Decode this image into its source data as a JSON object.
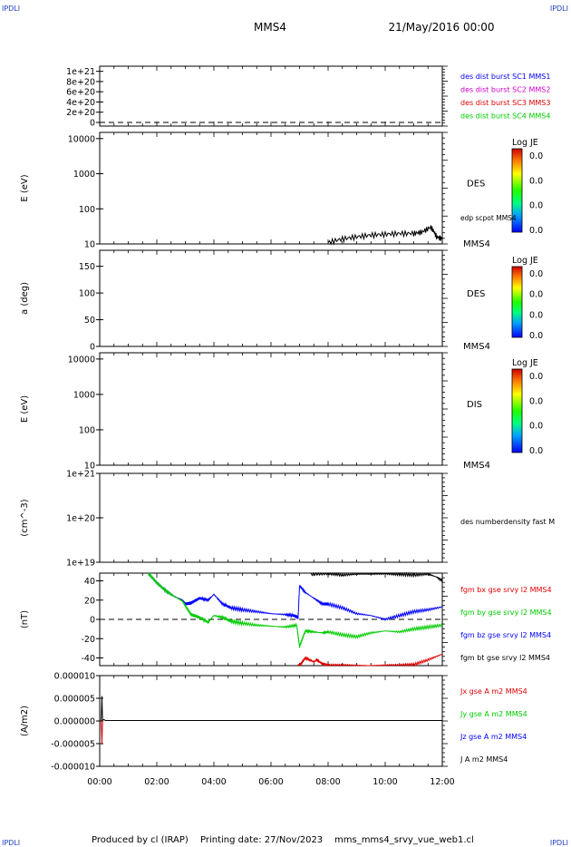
{
  "header": {
    "corner_left_top": "IPDLI",
    "corner_right_top": "IPDLI",
    "corner_left_bottom": "IPDLI",
    "corner_right_bottom": "IPDLI",
    "spacecraft": "MMS4",
    "date": "21/May/2016 00:00"
  },
  "footer": {
    "produced_by": "Produced by cl (IRAP)",
    "printing_date": "Printing date: 27/Nov/2023",
    "filename": "mms_mms4_srvy_vue_web1.cl"
  },
  "time_axis": {
    "ticks": [
      "00:00",
      "02:00",
      "04:00",
      "06:00",
      "08:00",
      "10:00",
      "12:00"
    ],
    "range_hours": [
      0,
      12
    ]
  },
  "chart_data": [
    {
      "type": "line",
      "panel": "burst",
      "ylabel": "",
      "yticks": [
        "1e+21",
        "8e+20",
        "6e+20",
        "4e+20",
        "2e+20",
        "0"
      ],
      "legend": [
        {
          "text": "des dist burst SC1 MMS1",
          "color": "#0000ff"
        },
        {
          "text": "des dist burst SC2 MMS2",
          "color": "#d000d0"
        },
        {
          "text": "des dist burst SC3 MMS3",
          "color": "#e00000"
        },
        {
          "text": "des dist burst SC4 MMS4",
          "color": "#00cc00"
        }
      ],
      "series": [
        {
          "values_description": "dashed zero line",
          "y": 0
        }
      ]
    },
    {
      "type": "heatmap",
      "panel": "des-energy",
      "ylabel": "E (eV)",
      "scale": "log",
      "ylim": [
        10,
        15000
      ],
      "yticks": [
        "10000",
        "1000",
        "100",
        "10"
      ],
      "label": "DES",
      "sublabel": "MMS4",
      "colorbar": {
        "title": "Log JE",
        "ticks": [
          "0.0",
          "0.0",
          "0.0",
          "0.0"
        ]
      },
      "overlay": {
        "name": "edp scpot MMS4",
        "color": "#000000",
        "x": [
          8.0,
          8.5,
          9.0,
          9.5,
          10.0,
          10.5,
          11.0,
          11.3,
          11.6,
          11.8,
          12.0
        ],
        "y": [
          11,
          14,
          16,
          18,
          19,
          20,
          20,
          22,
          30,
          16,
          14
        ]
      }
    },
    {
      "type": "heatmap",
      "panel": "des-pitch",
      "ylabel": "a (deg)",
      "ylim": [
        0,
        180
      ],
      "yticks": [
        "150",
        "100",
        "50",
        "0"
      ],
      "label": "DES",
      "sublabel": "MMS4",
      "colorbar": {
        "title": "Log JE",
        "ticks": [
          "0.0",
          "0.0",
          "0.0",
          "0.0"
        ]
      }
    },
    {
      "type": "heatmap",
      "panel": "dis-energy",
      "ylabel": "E (eV)",
      "scale": "log",
      "ylim": [
        10,
        15000
      ],
      "yticks": [
        "10000",
        "1000",
        "100",
        "10"
      ],
      "label": "DIS",
      "sublabel": "MMS4",
      "colorbar": {
        "title": "Log JE",
        "ticks": [
          "0.0",
          "0.0",
          "0.0",
          "0.0"
        ]
      }
    },
    {
      "type": "line",
      "panel": "density",
      "ylabel": "(cm^-3)",
      "scale": "log",
      "yticks": [
        "1e+21",
        "1e+20",
        "1e+19"
      ],
      "legend": [
        {
          "text": "des numberdensity fast M",
          "color": "#000000"
        }
      ]
    },
    {
      "type": "line",
      "panel": "fgm",
      "ylabel": "(nT)",
      "ylim": [
        -48,
        48
      ],
      "yticks": [
        "40",
        "20",
        "0",
        "-20",
        "-40"
      ],
      "legend": [
        {
          "text": "fgm bx gse srvy l2 MMS4",
          "color": "#e00000"
        },
        {
          "text": "fgm by gse srvy l2 MMS4",
          "color": "#00cc00"
        },
        {
          "text": "fgm bz gse srvy l2 MMS4",
          "color": "#0000ff"
        },
        {
          "text": "fgm bt gse srvy l2 MMS4",
          "color": "#000000"
        }
      ],
      "series": [
        {
          "key": "bt",
          "color": "#000000",
          "x": [
            7.4,
            8.0,
            8.5,
            9.0,
            9.5,
            10.0,
            10.5,
            11.0,
            11.5,
            11.8,
            12.0
          ],
          "y": [
            47,
            48,
            46,
            47,
            47,
            48,
            47,
            46,
            47,
            44,
            40
          ]
        },
        {
          "key": "bz",
          "color": "#0000ff",
          "x": [
            1.7,
            2.0,
            2.3,
            2.6,
            2.9,
            3.0,
            3.2,
            3.5,
            3.8,
            4.0,
            4.3,
            4.6,
            5.0,
            5.5,
            6.0,
            6.5,
            6.8,
            6.95,
            7.0,
            7.2,
            7.5,
            7.8,
            8.0,
            8.5,
            9.0,
            9.5,
            10.0,
            10.5,
            11.0,
            11.5,
            12.0
          ],
          "y": [
            48,
            38,
            30,
            24,
            20,
            16,
            17,
            22,
            20,
            26,
            16,
            12,
            10,
            8,
            6,
            5,
            4,
            2,
            35,
            28,
            22,
            16,
            16,
            12,
            6,
            4,
            0,
            4,
            8,
            10,
            13
          ]
        },
        {
          "key": "by",
          "color": "#00cc00",
          "x": [
            1.7,
            2.0,
            2.3,
            2.6,
            2.9,
            3.0,
            3.2,
            3.5,
            3.8,
            4.0,
            4.3,
            4.6,
            5.0,
            5.5,
            6.0,
            6.5,
            6.9,
            7.0,
            7.2,
            7.5,
            7.8,
            8.0,
            8.5,
            9.0,
            9.5,
            10.0,
            10.5,
            11.0,
            11.5,
            12.0
          ],
          "y": [
            48,
            38,
            30,
            24,
            19,
            14,
            5,
            2,
            -3,
            4,
            2,
            -2,
            -4,
            -6,
            -7,
            -8,
            -6,
            -28,
            -12,
            -13,
            -14,
            -13,
            -16,
            -18,
            -14,
            -12,
            -13,
            -10,
            -8,
            -6
          ]
        },
        {
          "key": "bx",
          "color": "#e00000",
          "x": [
            6.95,
            7.0,
            7.2,
            7.5,
            7.6,
            7.8,
            8.0,
            8.5,
            9.0,
            9.5,
            10.0,
            10.5,
            11.0,
            11.5,
            12.0
          ],
          "y": [
            -48,
            -48,
            -40,
            -44,
            -42,
            -46,
            -48,
            -48,
            -48,
            -48,
            -48,
            -48,
            -47,
            -42,
            -36
          ]
        }
      ]
    },
    {
      "type": "line",
      "panel": "current",
      "ylabel": "(A/m2)",
      "ylim": [
        -1e-05,
        1e-05
      ],
      "yticks": [
        "0.000010",
        "0.000005",
        "0.000000",
        "-0.000005",
        "-0.000010"
      ],
      "legend": [
        {
          "text": "Jx gse A m2 MMS4",
          "color": "#e00000"
        },
        {
          "text": "Jy gse A m2 MMS4",
          "color": "#00cc00"
        },
        {
          "text": "Jz gse A m2 MMS4",
          "color": "#0000ff"
        },
        {
          "text": "J A m2 MMS4",
          "color": "#000000"
        }
      ],
      "series": [
        {
          "key": "J",
          "color": "#000000",
          "x": [
            0.05,
            0.08,
            0.1,
            0.15,
            0.2,
            12.0
          ],
          "y": [
            0,
            5.5e-06,
            2e-07,
            3e-07,
            1e-07,
            1e-07
          ]
        },
        {
          "key": "Jx",
          "color": "#e00000",
          "x": [
            0.05,
            0.08,
            0.1
          ],
          "y": [
            0,
            -5.2e-06,
            0
          ]
        }
      ]
    }
  ]
}
